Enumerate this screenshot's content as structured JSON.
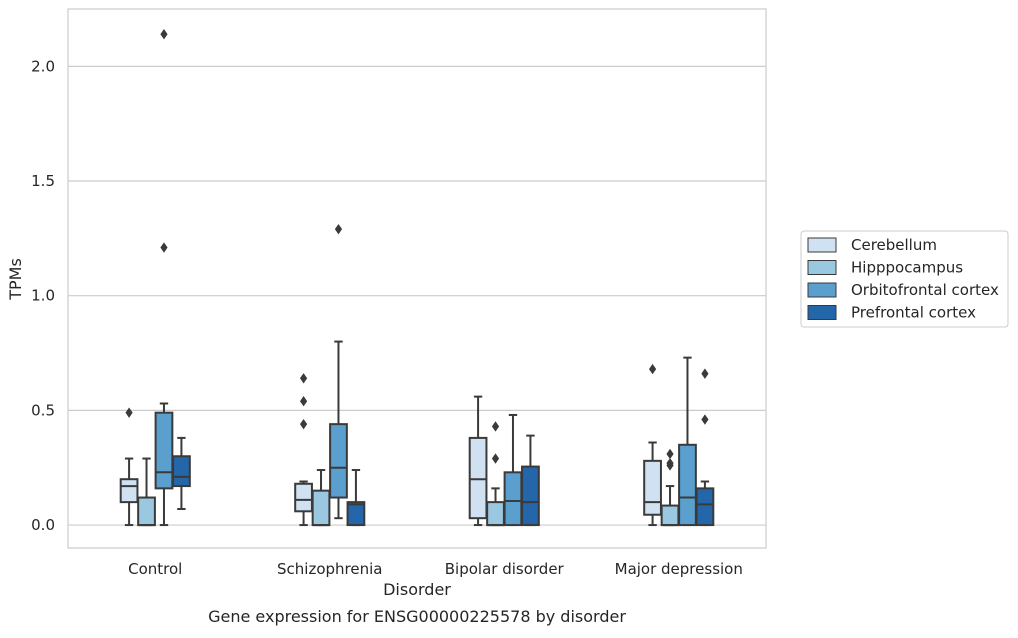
{
  "caption": "Gene expression for ENSG00000225578 by disorder",
  "chart_data": {
    "type": "boxplot",
    "xlabel": "Disorder",
    "ylabel": "TPMs",
    "ylim": [
      -0.1,
      2.25
    ],
    "yticks": [
      0.0,
      0.5,
      1.0,
      1.5,
      2.0
    ],
    "ytick_labels": [
      "0.0",
      "0.5",
      "1.0",
      "1.5",
      "2.0"
    ],
    "grid": "horizontal",
    "legend_position": "right",
    "categories": [
      "Control",
      "Schizophrenia",
      "Bipolar disorder",
      "Major depression"
    ],
    "series": [
      {
        "name": "Cerebellum",
        "color": "#d0e2f2",
        "boxes": [
          {
            "whislo": 0.0,
            "q1": 0.1,
            "med": 0.17,
            "q3": 0.2,
            "whishi": 0.29,
            "fliers": [
              0.49
            ]
          },
          {
            "whislo": 0.0,
            "q1": 0.06,
            "med": 0.11,
            "q3": 0.18,
            "whishi": 0.19,
            "fliers": [
              0.44,
              0.54,
              0.64
            ]
          },
          {
            "whislo": 0.0,
            "q1": 0.03,
            "med": 0.2,
            "q3": 0.38,
            "whishi": 0.56,
            "fliers": []
          },
          {
            "whislo": 0.0,
            "q1": 0.045,
            "med": 0.1,
            "q3": 0.28,
            "whishi": 0.36,
            "fliers": [
              0.68
            ]
          }
        ]
      },
      {
        "name": "Hipppocampus",
        "color": "#9ac8e0",
        "boxes": [
          {
            "whislo": 0.0,
            "q1": 0.0,
            "med": 0.0,
            "q3": 0.12,
            "whishi": 0.29,
            "fliers": []
          },
          {
            "whislo": 0.0,
            "q1": 0.0,
            "med": 0.0,
            "q3": 0.15,
            "whishi": 0.24,
            "fliers": []
          },
          {
            "whislo": 0.0,
            "q1": 0.0,
            "med": 0.0,
            "q3": 0.1,
            "whishi": 0.16,
            "fliers": [
              0.29,
              0.43
            ]
          },
          {
            "whislo": 0.0,
            "q1": 0.0,
            "med": 0.0,
            "q3": 0.085,
            "whishi": 0.17,
            "fliers": [
              0.26,
              0.27,
              0.31
            ]
          }
        ]
      },
      {
        "name": "Orbitofrontal cortex",
        "color": "#5a9fcd",
        "boxes": [
          {
            "whislo": 0.0,
            "q1": 0.16,
            "med": 0.23,
            "q3": 0.49,
            "whishi": 0.53,
            "fliers": [
              1.21,
              2.14
            ]
          },
          {
            "whislo": 0.03,
            "q1": 0.12,
            "med": 0.25,
            "q3": 0.44,
            "whishi": 0.8,
            "fliers": [
              1.29
            ]
          },
          {
            "whislo": 0.0,
            "q1": 0.0,
            "med": 0.105,
            "q3": 0.23,
            "whishi": 0.48,
            "fliers": []
          },
          {
            "whislo": 0.0,
            "q1": 0.0,
            "med": 0.12,
            "q3": 0.35,
            "whishi": 0.73,
            "fliers": []
          }
        ]
      },
      {
        "name": "Prefrontal cortex",
        "color": "#2466aa",
        "boxes": [
          {
            "whislo": 0.07,
            "q1": 0.17,
            "med": 0.21,
            "q3": 0.3,
            "whishi": 0.38,
            "fliers": []
          },
          {
            "whislo": 0.0,
            "q1": 0.0,
            "med": 0.09,
            "q3": 0.1,
            "whishi": 0.24,
            "fliers": []
          },
          {
            "whislo": 0.0,
            "q1": 0.0,
            "med": 0.1,
            "q3": 0.255,
            "whishi": 0.39,
            "fliers": []
          },
          {
            "whislo": 0.0,
            "q1": 0.0,
            "med": 0.09,
            "q3": 0.16,
            "whishi": 0.19,
            "fliers": [
              0.46,
              0.66
            ]
          }
        ]
      }
    ]
  }
}
